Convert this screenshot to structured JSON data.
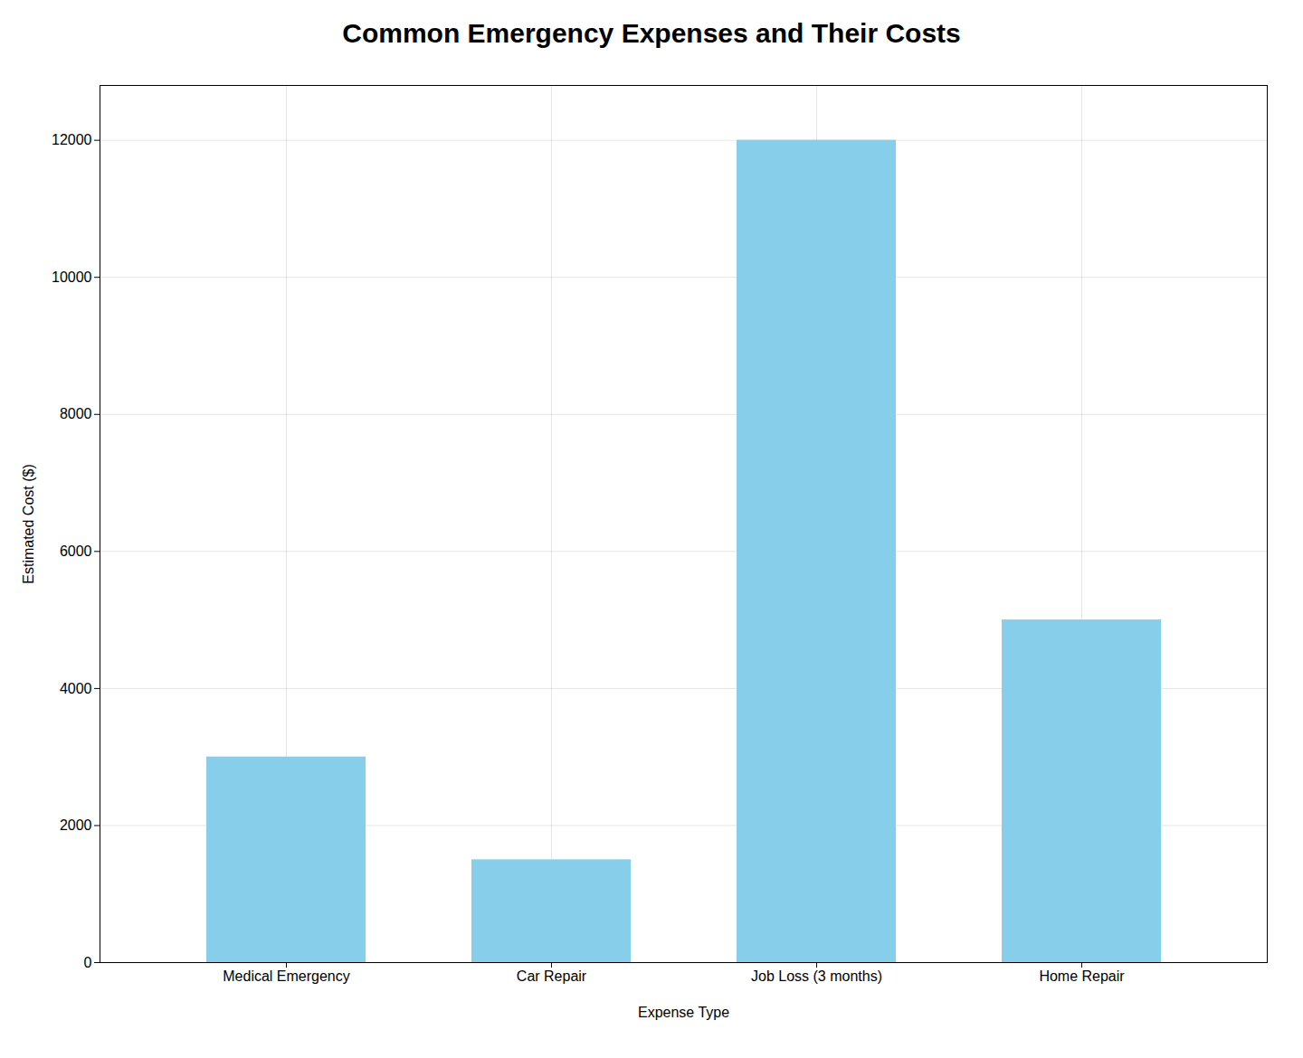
{
  "chart_data": {
    "type": "bar",
    "title": "Common Emergency Expenses and Their Costs",
    "categories": [
      "Medical Emergency",
      "Car Repair",
      "Job Loss (3 months)",
      "Home Repair"
    ],
    "values": [
      3000,
      1500,
      12000,
      5000
    ],
    "color": "#87CEEB",
    "xlabel": "Expense Type",
    "ylabel": "Estimated Cost ($)",
    "ylim": [
      0,
      12800
    ],
    "yticks": [
      0,
      2000,
      4000,
      6000,
      8000,
      10000,
      12000
    ],
    "grid": true
  }
}
